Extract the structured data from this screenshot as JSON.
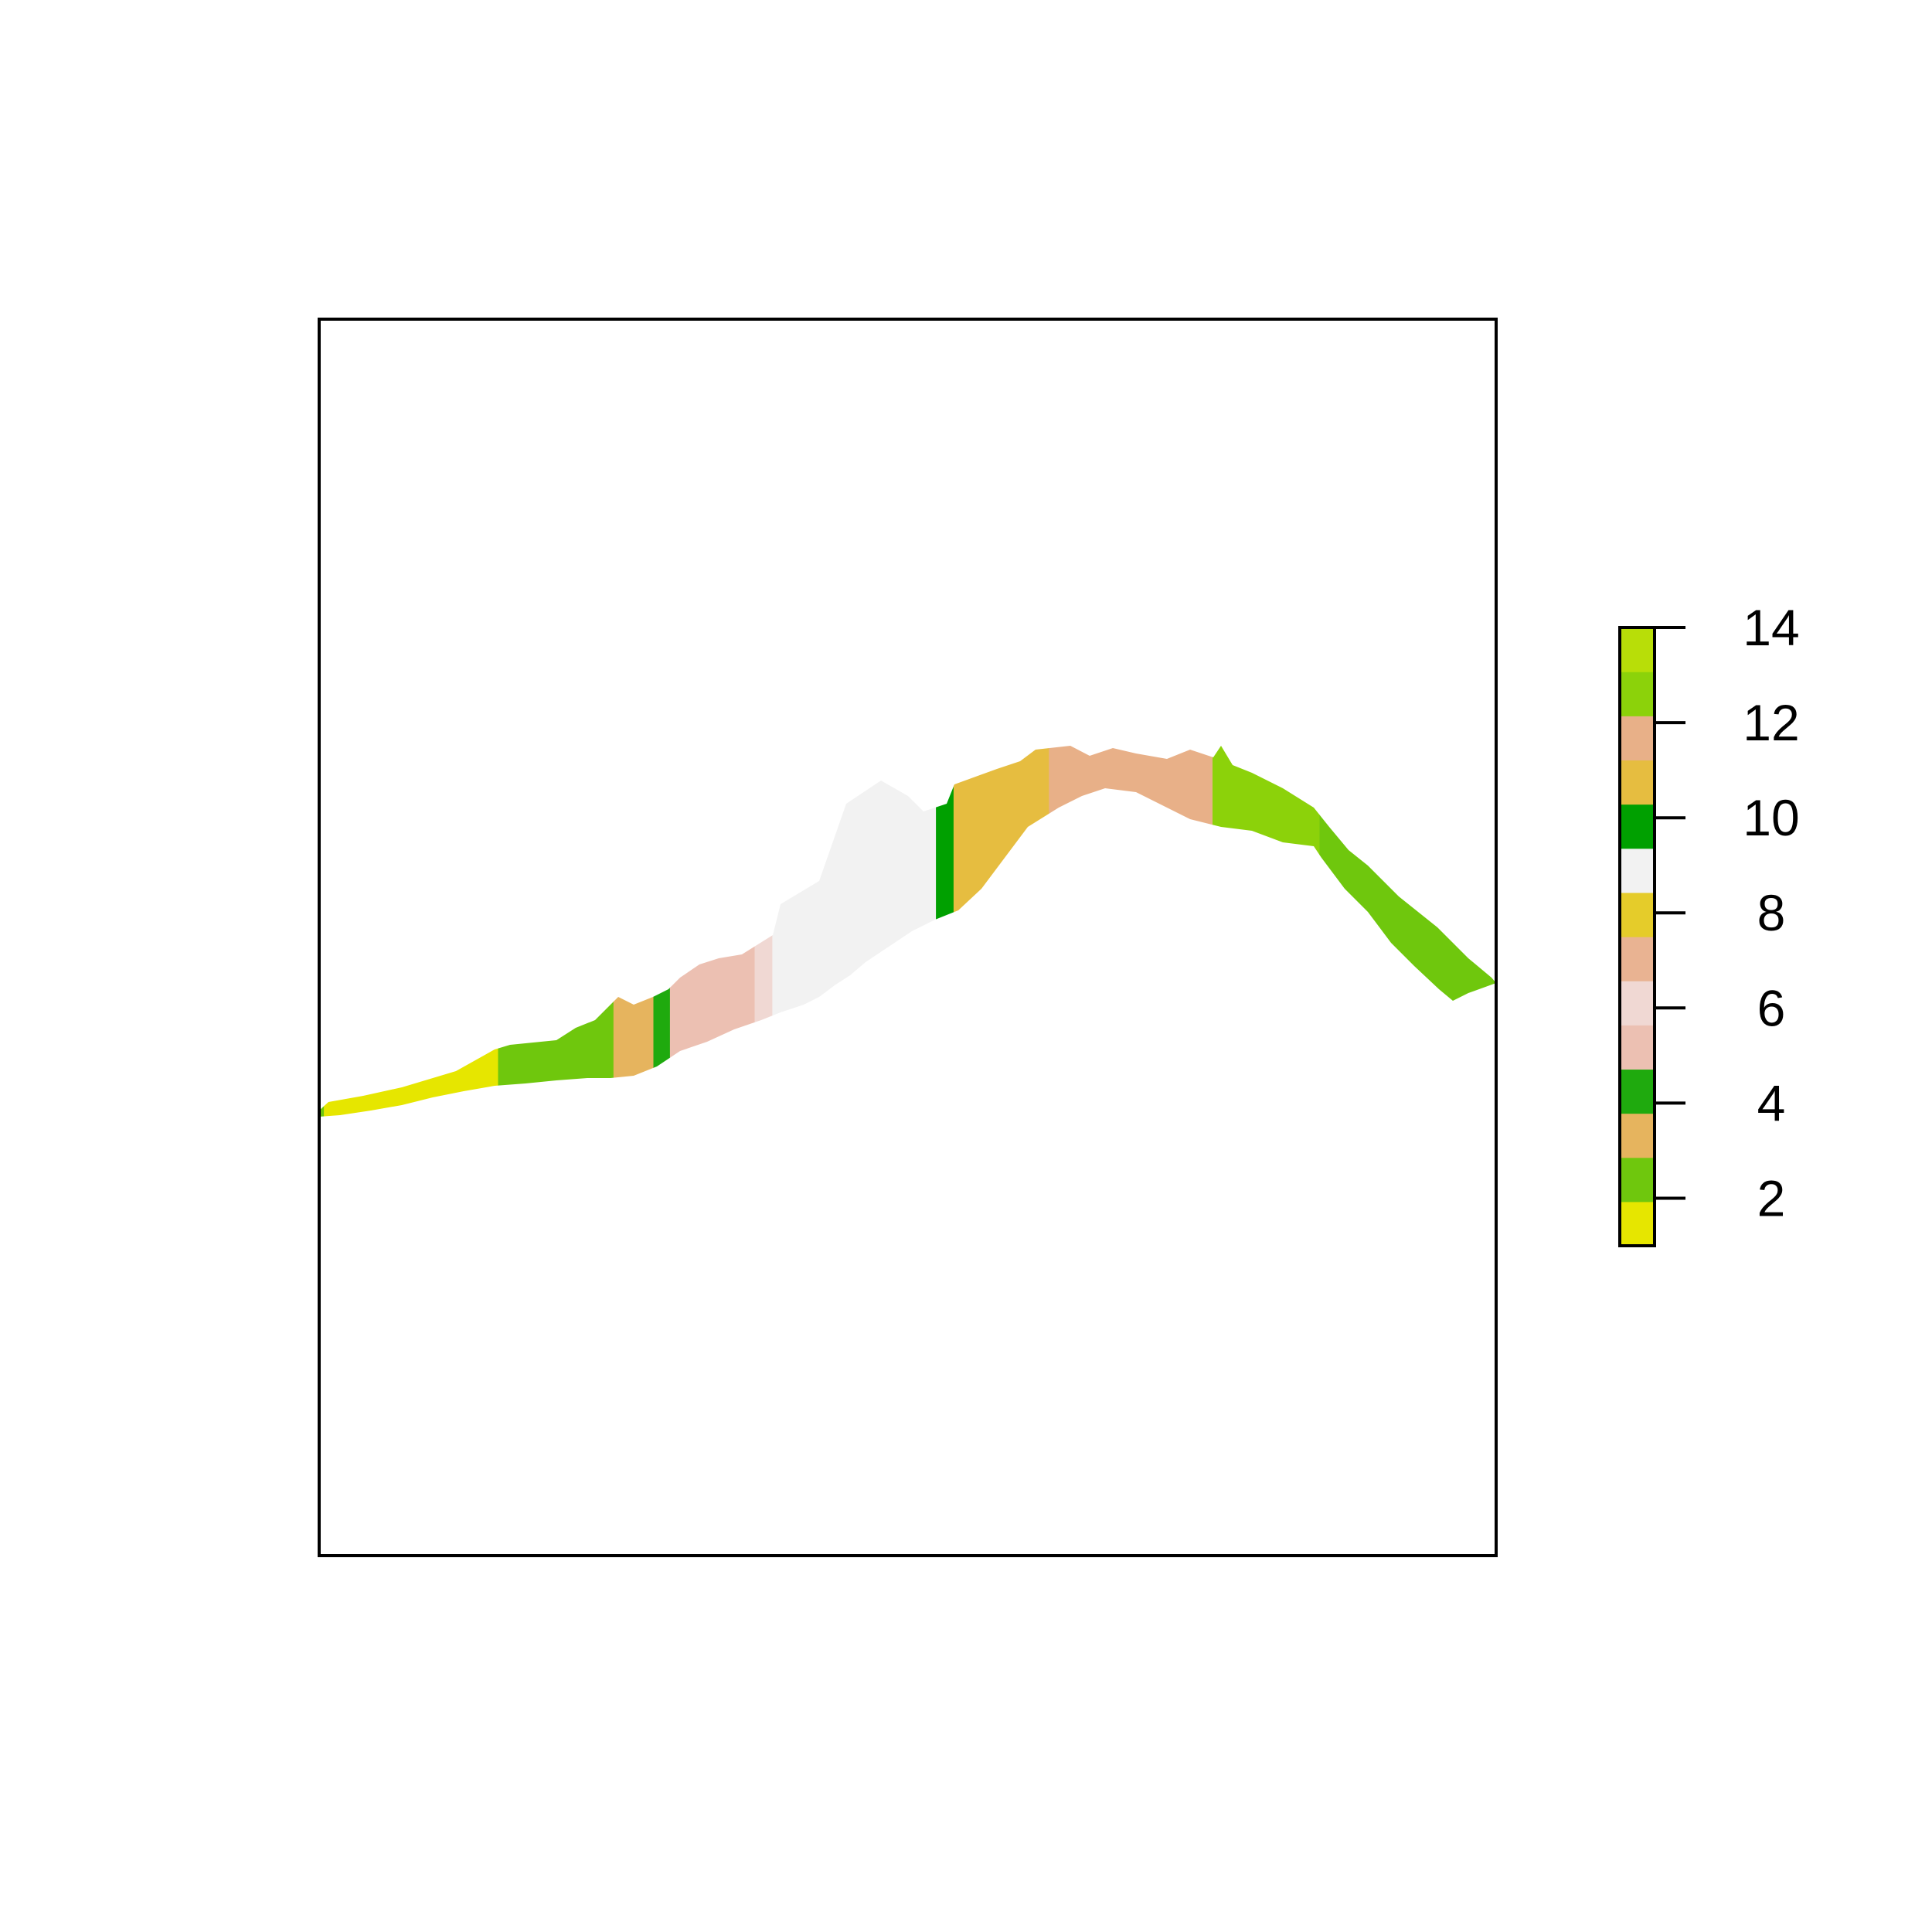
{
  "chart_data": {
    "type": "heatmap",
    "title": "",
    "xlabel": "",
    "ylabel": "",
    "axes_shown": false,
    "legend": {
      "placement": "right",
      "type": "discrete color bar",
      "range": [
        1,
        14
      ],
      "tick_labels": [
        "2",
        "4",
        "6",
        "8",
        "10",
        "12",
        "14"
      ],
      "tick_values": [
        2,
        4,
        6,
        8,
        10,
        12,
        14
      ],
      "classes": [
        {
          "value": 1,
          "color": "#e6e600"
        },
        {
          "value": 2,
          "color": "#6fc70d"
        },
        {
          "value": 3,
          "color": "#e6b45e"
        },
        {
          "value": 4,
          "color": "#1faa0e"
        },
        {
          "value": 5,
          "color": "#ecc0b2"
        },
        {
          "value": 6,
          "color": "#f0d8d3"
        },
        {
          "value": 7,
          "color": "#e9b392"
        },
        {
          "value": 8,
          "color": "#e5cc2a"
        },
        {
          "value": 9,
          "color": "#f2f2f2"
        },
        {
          "value": 10,
          "color": "#00a000"
        },
        {
          "value": 11,
          "color": "#e6bd40"
        },
        {
          "value": 12,
          "color": "#e8b088"
        },
        {
          "value": 13,
          "color": "#8cd20a"
        },
        {
          "value": 14,
          "color": "#b8de08"
        }
      ]
    },
    "raster_regions": [
      {
        "value": 2,
        "x_range": [
          0.0,
          0.004
        ],
        "y_center": 0.355
      },
      {
        "value": 1,
        "x_range": [
          0.004,
          0.152
        ],
        "y_center": 0.37
      },
      {
        "value": 2,
        "x_range": [
          0.152,
          0.25
        ],
        "y_center": 0.4
      },
      {
        "value": 3,
        "x_range": [
          0.25,
          0.284
        ],
        "y_center": 0.42
      },
      {
        "value": 4,
        "x_range": [
          0.284,
          0.298
        ],
        "y_center": 0.425
      },
      {
        "value": 5,
        "x_range": [
          0.298,
          0.37
        ],
        "y_center": 0.445
      },
      {
        "value": 6,
        "x_range": [
          0.37,
          0.385
        ],
        "y_center": 0.465
      },
      {
        "value": 9,
        "x_range": [
          0.385,
          0.524
        ],
        "y_center": 0.53
      },
      {
        "value": 10,
        "x_range": [
          0.524,
          0.539
        ],
        "y_center": 0.57
      },
      {
        "value": 11,
        "x_range": [
          0.539,
          0.62
        ],
        "y_center": 0.59
      },
      {
        "value": 12,
        "x_range": [
          0.62,
          0.759
        ],
        "y_center": 0.625
      },
      {
        "value": 13,
        "x_range": [
          0.759,
          0.85
        ],
        "y_center": 0.6
      },
      {
        "value": 2,
        "x_range": [
          0.85,
          1.0
        ],
        "y_center": 0.51
      }
    ]
  }
}
